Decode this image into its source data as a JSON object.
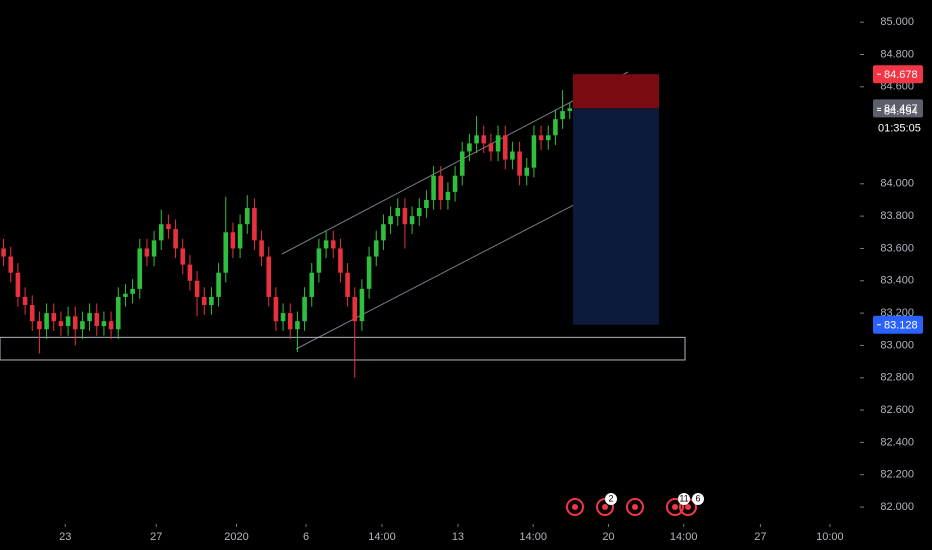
{
  "chart_data": {
    "type": "candlestick",
    "up_color": "#2fbf3f",
    "down_color": "#e8313f",
    "open": [
      83.6,
      83.55,
      83.45,
      83.3,
      83.25,
      83.15,
      83.1,
      83.2,
      83.15,
      83.12,
      83.18,
      83.1,
      83.15,
      83.2,
      83.12,
      83.15,
      83.1,
      83.3,
      83.32,
      83.35,
      83.6,
      83.55,
      83.65,
      83.75,
      83.72,
      83.6,
      83.5,
      83.4,
      83.3,
      83.25,
      83.3,
      83.45,
      83.7,
      83.6,
      83.75,
      83.85,
      83.65,
      83.55,
      83.3,
      83.15,
      83.2,
      83.1,
      83.15,
      83.3,
      83.45,
      83.6,
      83.65,
      83.6,
      83.45,
      83.3,
      83.15,
      83.35,
      83.55,
      83.65,
      83.75,
      83.8,
      83.85,
      83.75,
      83.8,
      83.85,
      83.9,
      84.05,
      83.9,
      83.95,
      84.05,
      84.2,
      84.25,
      84.3,
      84.25,
      84.2,
      84.3,
      84.15,
      84.2,
      84.05,
      84.1,
      84.3,
      84.27,
      84.3,
      84.4,
      84.45
    ],
    "high": [
      83.66,
      83.61,
      83.51,
      83.36,
      83.31,
      83.21,
      83.26,
      83.26,
      83.21,
      83.24,
      83.24,
      83.21,
      83.26,
      83.26,
      83.21,
      83.21,
      83.36,
      83.38,
      83.41,
      83.66,
      83.66,
      83.71,
      83.84,
      83.81,
      83.78,
      83.66,
      83.56,
      83.46,
      83.36,
      83.36,
      83.51,
      83.92,
      83.76,
      83.81,
      83.93,
      83.91,
      83.71,
      83.61,
      83.36,
      83.26,
      83.26,
      83.21,
      83.36,
      83.51,
      83.66,
      83.71,
      83.71,
      83.66,
      83.51,
      83.36,
      83.41,
      83.61,
      83.71,
      83.81,
      83.86,
      83.91,
      83.91,
      83.86,
      83.91,
      83.96,
      84.11,
      84.11,
      84.01,
      84.11,
      84.26,
      84.31,
      84.42,
      84.36,
      84.31,
      84.36,
      84.36,
      84.26,
      84.26,
      84.16,
      84.36,
      84.36,
      84.36,
      84.46,
      84.58,
      84.5
    ],
    "low": [
      83.49,
      83.39,
      83.24,
      83.19,
      83.09,
      82.95,
      83.04,
      83.09,
      83.06,
      83.06,
      83.0,
      83.04,
      83.09,
      83.06,
      83.06,
      83.04,
      83.04,
      83.24,
      83.26,
      83.29,
      83.49,
      83.49,
      83.59,
      83.66,
      83.54,
      83.44,
      83.34,
      83.18,
      83.19,
      83.19,
      83.24,
      83.39,
      83.54,
      83.54,
      83.69,
      83.59,
      83.49,
      83.24,
      83.09,
      83.09,
      83.04,
      82.96,
      83.09,
      83.24,
      83.39,
      83.54,
      83.54,
      83.39,
      83.24,
      82.8,
      83.09,
      83.29,
      83.49,
      83.59,
      83.69,
      83.74,
      83.6,
      83.69,
      83.74,
      83.79,
      83.84,
      83.84,
      83.84,
      83.89,
      83.99,
      84.14,
      84.19,
      84.19,
      84.14,
      84.14,
      84.09,
      84.09,
      83.99,
      83.99,
      84.04,
      84.21,
      84.21,
      84.24,
      84.34,
      84.4
    ],
    "close": [
      83.55,
      83.45,
      83.3,
      83.25,
      83.15,
      83.1,
      83.2,
      83.15,
      83.12,
      83.18,
      83.1,
      83.15,
      83.2,
      83.12,
      83.15,
      83.1,
      83.3,
      83.32,
      83.35,
      83.6,
      83.55,
      83.65,
      83.75,
      83.72,
      83.6,
      83.5,
      83.4,
      83.3,
      83.25,
      83.3,
      83.45,
      83.7,
      83.6,
      83.75,
      83.85,
      83.65,
      83.55,
      83.3,
      83.15,
      83.2,
      83.1,
      83.15,
      83.3,
      83.45,
      83.6,
      83.65,
      83.6,
      83.45,
      83.3,
      83.15,
      83.35,
      83.55,
      83.65,
      83.75,
      83.8,
      83.85,
      83.75,
      83.8,
      83.85,
      83.9,
      84.05,
      83.9,
      83.95,
      84.05,
      84.2,
      84.25,
      84.3,
      84.25,
      84.2,
      84.3,
      84.15,
      84.2,
      84.05,
      84.1,
      84.3,
      84.27,
      84.3,
      84.4,
      84.45,
      84.467
    ],
    "xlim": [
      -0.5,
      119.5
    ],
    "xticks": [
      {
        "value": 8.6,
        "label": "23"
      },
      {
        "value": 21.3,
        "label": "27"
      },
      {
        "value": 32.5,
        "label": "2020"
      },
      {
        "value": 42.2,
        "label": "6"
      },
      {
        "value": 52.8,
        "label": "14:00"
      },
      {
        "value": 63.4,
        "label": "13"
      },
      {
        "value": 73.9,
        "label": "14:00"
      },
      {
        "value": 84.4,
        "label": "20"
      },
      {
        "value": 94.9,
        "label": "14:00"
      },
      {
        "value": 105.6,
        "label": "27"
      },
      {
        "value": 115.3,
        "label": "10:00"
      }
    ],
    "ylim": [
      81.92,
      85.1
    ],
    "yticks": [
      {
        "value": 85.0,
        "label": "85.000"
      },
      {
        "value": 84.8,
        "label": "84.800"
      },
      {
        "value": 84.6,
        "label": "84.600"
      },
      {
        "value": 84.0,
        "label": "84.000"
      },
      {
        "value": 83.8,
        "label": "83.800"
      },
      {
        "value": 83.6,
        "label": "83.600"
      },
      {
        "value": 83.4,
        "label": "83.400"
      },
      {
        "value": 83.2,
        "label": "83.200"
      },
      {
        "value": 83.0,
        "label": "83.000"
      },
      {
        "value": 82.8,
        "label": "82.800"
      },
      {
        "value": 82.6,
        "label": "82.600"
      },
      {
        "value": 82.4,
        "label": "82.400"
      },
      {
        "value": 82.2,
        "label": "82.200"
      },
      {
        "value": 82.0,
        "label": "82.000"
      }
    ],
    "position": {
      "stop": 84.678,
      "entry": 84.467,
      "target": 83.128
    },
    "zone": {
      "top": 83.05,
      "bottom": 82.91
    },
    "price_tags": [
      {
        "value": 84.678,
        "color": "#f23645"
      },
      {
        "value": 84.467,
        "color": "#5d606b"
      },
      {
        "value": 84.454,
        "color": null
      },
      {
        "value": 83.128,
        "color": "#2962ff"
      }
    ],
    "countdown": "01:35:05",
    "event_badges": [
      2,
      11,
      6
    ]
  }
}
